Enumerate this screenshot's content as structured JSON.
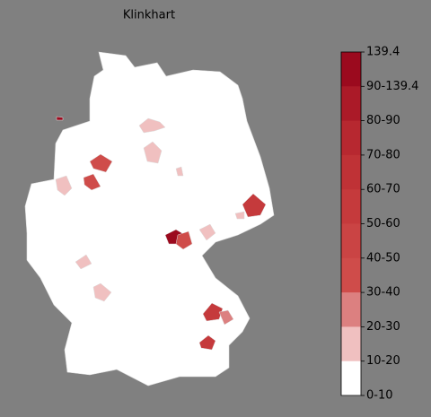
{
  "map": {
    "title": "Klinkhart",
    "legend": {
      "labels": [
        "139.4",
        "90-139.4",
        "80-90",
        "70-80",
        "60-70",
        "50-60",
        "40-50",
        "30-40",
        "20-30",
        "10-20",
        "0-10"
      ],
      "colors": [
        "#9b0a1e",
        "#ab1a28",
        "#b72830",
        "#bf3236",
        "#c53a3c",
        "#ca4444",
        "#cf4c4a",
        "#dc8080",
        "#f0c0c0",
        "#ffffff"
      ]
    }
  }
}
